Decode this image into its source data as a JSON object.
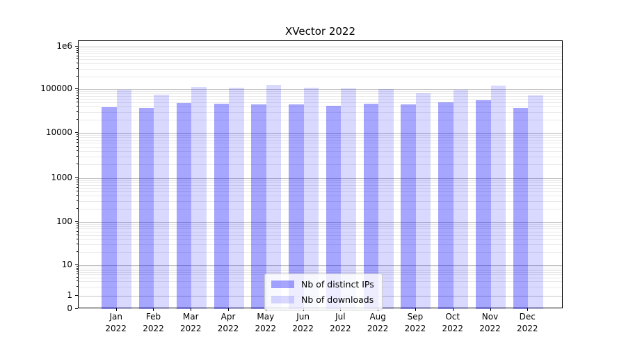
{
  "chart_data": {
    "type": "bar",
    "title": "XVector 2022",
    "xlabel": "",
    "ylabel": "",
    "yscale": "symlog",
    "grid": "both",
    "legend_position": "lower center",
    "categories": [
      "Jan 2022",
      "Feb 2022",
      "Mar 2022",
      "Apr 2022",
      "May 2022",
      "Jun 2022",
      "Jul 2022",
      "Aug 2022",
      "Sep 2022",
      "Oct 2022",
      "Nov 2022",
      "Dec 2022"
    ],
    "series": [
      {
        "name": "Nb of distinct IPs",
        "color": "#0000ff",
        "alpha": 0.35,
        "values": [
          38000,
          37000,
          48000,
          47000,
          44000,
          45000,
          42000,
          46000,
          44000,
          50000,
          55000,
          37000
        ]
      },
      {
        "name": "Nb of downloads",
        "color": "#0000ff",
        "alpha": 0.15,
        "values": [
          96000,
          74000,
          113000,
          108000,
          125000,
          107000,
          102000,
          99000,
          79000,
          98000,
          122000,
          71000
        ]
      }
    ],
    "yticks": {
      "values": [
        0,
        1,
        10,
        100,
        1000,
        10000,
        100000,
        1000000
      ],
      "labels": [
        "0",
        "1",
        "10",
        "100",
        "1000",
        "10000",
        "100000",
        "1e6"
      ]
    },
    "grid_colors": {
      "major": "#c2c2c2",
      "minor": "#e9e9e9"
    }
  }
}
